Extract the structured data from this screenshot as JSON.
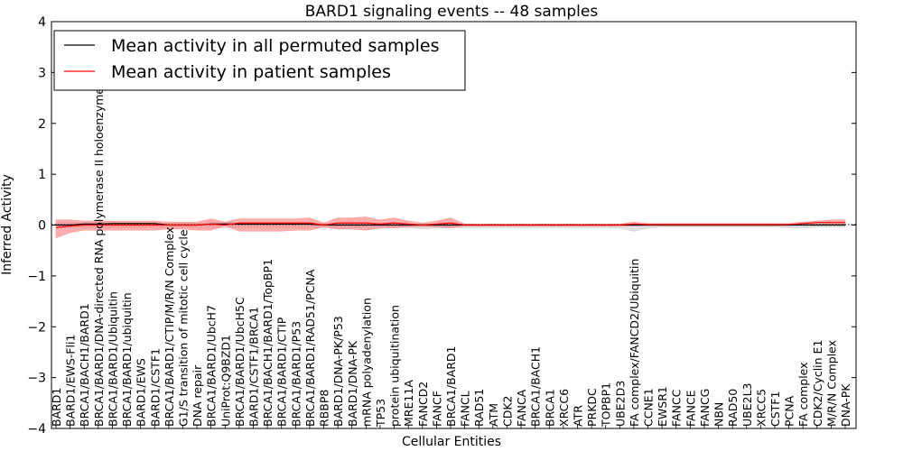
{
  "chart_data": {
    "type": "line",
    "title": "BARD1 signaling events -- 48 samples",
    "xlabel": "Cellular Entities",
    "ylabel": "Inferred Activity",
    "ylim": [
      -4,
      4
    ],
    "yticks": [
      -4,
      -3,
      -2,
      -1,
      0,
      1,
      2,
      3,
      4
    ],
    "ytick_labels": [
      "−4",
      "−3",
      "−2",
      "−1",
      "0",
      "1",
      "2",
      "3",
      "4"
    ],
    "grid": false,
    "legend_position": "top-left",
    "categories": [
      "BARD1",
      "BARD1/EWS-Fli1",
      "BRCA1/BACH1/BARD1",
      "BRCA1/BARD1/DNA-directed RNA polymerase II holoenzyme",
      "BRCA1/BARD1/Ubiquitin",
      "BRCA1/BARD1/ubiquitin",
      "BARD1/EWS",
      "BARD1/CSTF1",
      "BRCA1/BARD1/CTIP/M/R/N Complex",
      "G1/S transition of mitotic cell cycle",
      "DNA repair",
      "BRCA1/BARD1/UbcH7",
      "UniProt:Q9BZD1",
      "BRCA1/BARD1/UbcH5C",
      "BARD1/CSTF1/BRCA1",
      "BRCA1/BACH1/BARD1/TopBP1",
      "BRCA1/BARD1/CTIP",
      "BRCA1/BARD1/P53",
      "BRCA1/BARD1/RAD51/PCNA",
      "RBBP8",
      "BARD1/DNA-PK/P53",
      "BARD1/DNA-PK",
      "mRNA polyadenylation",
      "TP53",
      "protein ubiquitination",
      "MRE11A",
      "FANCD2",
      "FANCF",
      "BRCA1/BARD1",
      "FANCL",
      "RAD51",
      "ATM",
      "CDK2",
      "FANCA",
      "BRCA1/BACH1",
      "BRCA1",
      "XRCC6",
      "ATR",
      "PRKDC",
      "TOPBP1",
      "UBE2D3",
      "FA complex/FANCD2/Ubiquitin",
      "CCNE1",
      "EWSR1",
      "FANCC",
      "FANCE",
      "FANCG",
      "NBN",
      "RAD50",
      "UBE2L3",
      "XRCC5",
      "CSTF1",
      "PCNA",
      "FA complex",
      "CDK2/Cyclin E1",
      "M/R/N Complex",
      "DNA-PK"
    ],
    "series": [
      {
        "name": "Mean activity in all permuted samples",
        "color": "#000000",
        "values": [
          0.0,
          0.0,
          0.02,
          0.02,
          0.03,
          0.03,
          0.03,
          0.03,
          0.0,
          0.0,
          0.0,
          0.02,
          0.02,
          0.02,
          0.02,
          0.02,
          0.02,
          0.02,
          0.02,
          0.0,
          0.0,
          0.0,
          0.0,
          0.0,
          0.0,
          0.0,
          0.0,
          0.0,
          0.0,
          0.0,
          0.0,
          0.0,
          0.0,
          0.0,
          0.0,
          0.0,
          0.0,
          0.0,
          0.0,
          0.0,
          0.0,
          0.0,
          0.0,
          0.0,
          0.0,
          0.0,
          0.0,
          0.0,
          0.0,
          0.0,
          0.0,
          0.0,
          0.0,
          0.0,
          0.0,
          0.0,
          0.0
        ],
        "band_upper": [
          0.05,
          0.05,
          0.05,
          0.05,
          0.05,
          0.05,
          0.05,
          0.05,
          0.04,
          0.04,
          0.04,
          0.05,
          0.05,
          0.05,
          0.05,
          0.05,
          0.05,
          0.05,
          0.05,
          0.03,
          0.03,
          0.03,
          0.03,
          0.03,
          0.03,
          0.02,
          0.02,
          0.02,
          0.02,
          0.02,
          0.02,
          0.02,
          0.02,
          0.02,
          0.02,
          0.02,
          0.02,
          0.02,
          0.02,
          0.02,
          0.02,
          0.02,
          0.02,
          0.02,
          0.02,
          0.02,
          0.02,
          0.02,
          0.02,
          0.02,
          0.02,
          0.02,
          0.02,
          0.02,
          0.02,
          0.02,
          0.02
        ],
        "band_lower": [
          -0.05,
          -0.05,
          -0.05,
          -0.05,
          -0.05,
          -0.05,
          -0.05,
          -0.05,
          -0.05,
          -0.05,
          -0.05,
          -0.05,
          -0.05,
          -0.05,
          -0.05,
          -0.05,
          -0.05,
          -0.05,
          -0.05,
          -0.05,
          -0.05,
          -0.05,
          -0.05,
          -0.05,
          -0.05,
          -0.05,
          -0.08,
          -0.06,
          -0.05,
          -0.05,
          -0.05,
          -0.05,
          -0.05,
          -0.05,
          -0.05,
          -0.05,
          -0.05,
          -0.05,
          -0.05,
          -0.05,
          -0.06,
          -0.12,
          -0.06,
          -0.04,
          -0.04,
          -0.04,
          -0.04,
          -0.04,
          -0.04,
          -0.04,
          -0.04,
          -0.04,
          -0.05,
          -0.06,
          -0.04,
          -0.04,
          -0.04
        ],
        "band_color": "#d8d8d8"
      },
      {
        "name": "Mean activity in patient samples",
        "color": "#ff0000",
        "values": [
          -0.05,
          -0.02,
          0.0,
          0.0,
          0.0,
          0.0,
          0.0,
          0.0,
          0.0,
          0.0,
          0.0,
          0.02,
          0.0,
          0.04,
          0.04,
          0.04,
          0.04,
          0.04,
          0.04,
          0.0,
          0.04,
          0.04,
          0.04,
          0.02,
          0.04,
          0.02,
          0.0,
          0.02,
          0.04,
          0.0,
          0.0,
          0.0,
          0.0,
          0.0,
          0.0,
          0.0,
          0.0,
          0.0,
          0.0,
          0.0,
          0.0,
          0.02,
          0.01,
          0.01,
          0.01,
          0.01,
          0.01,
          0.01,
          0.01,
          0.01,
          0.01,
          0.01,
          0.01,
          0.03,
          0.05,
          0.05,
          0.05
        ],
        "band_upper": [
          0.1,
          0.1,
          0.08,
          0.08,
          0.08,
          0.08,
          0.08,
          0.08,
          0.06,
          0.06,
          0.06,
          0.12,
          0.06,
          0.12,
          0.12,
          0.12,
          0.12,
          0.12,
          0.14,
          0.04,
          0.14,
          0.14,
          0.16,
          0.1,
          0.14,
          0.08,
          0.04,
          0.08,
          0.14,
          0.02,
          0.02,
          0.02,
          0.02,
          0.02,
          0.02,
          0.02,
          0.02,
          0.02,
          0.02,
          0.02,
          0.02,
          0.06,
          0.03,
          0.03,
          0.03,
          0.03,
          0.03,
          0.03,
          0.03,
          0.03,
          0.03,
          0.03,
          0.03,
          0.06,
          0.08,
          0.1,
          0.1
        ],
        "band_lower": [
          -0.25,
          -0.15,
          -0.1,
          -0.1,
          -0.1,
          -0.1,
          -0.1,
          -0.1,
          -0.08,
          -0.08,
          -0.1,
          -0.1,
          -0.02,
          -0.12,
          -0.12,
          -0.12,
          -0.12,
          -0.1,
          -0.1,
          -0.04,
          -0.08,
          -0.08,
          -0.1,
          -0.06,
          -0.06,
          -0.04,
          -0.03,
          -0.04,
          -0.06,
          -0.02,
          -0.02,
          -0.02,
          -0.02,
          -0.02,
          -0.02,
          -0.02,
          -0.02,
          -0.02,
          -0.02,
          -0.02,
          -0.02,
          -0.02,
          -0.01,
          -0.01,
          -0.01,
          -0.01,
          -0.01,
          -0.01,
          -0.01,
          -0.01,
          -0.01,
          -0.01,
          -0.01,
          0.0,
          0.02,
          0.0,
          0.0
        ],
        "band_color": "#ff7f7f"
      }
    ]
  }
}
